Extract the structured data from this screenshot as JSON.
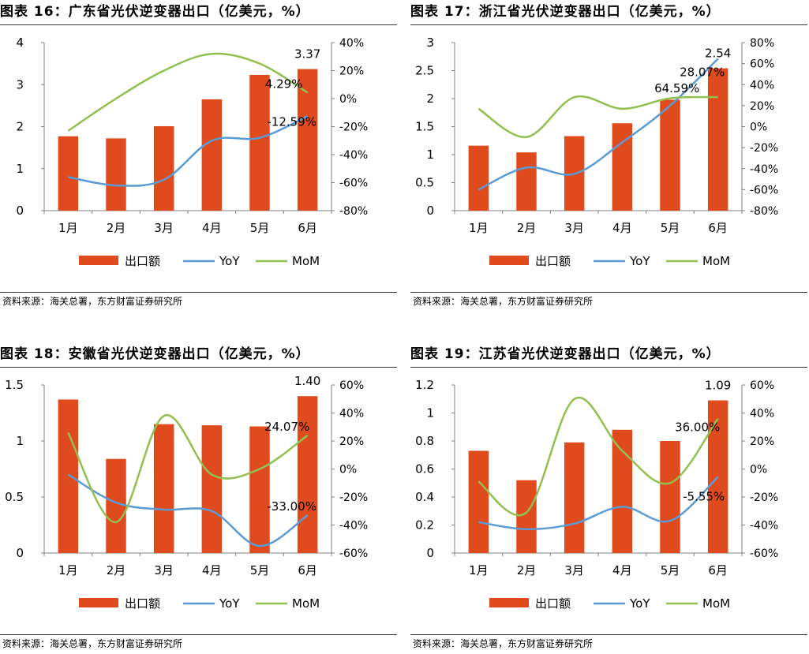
{
  "legend": {
    "bar": "出口额",
    "yoy": "YoY",
    "mom": "MoM"
  },
  "colors": {
    "bar": "#E04B1D",
    "yoy": "#5B9BD5",
    "mom": "#92C050",
    "axis": "#808080"
  },
  "panels": [
    {
      "title": "图表 16：广东省光伏逆变器出口（亿美元，%）",
      "source": "资料来源：海关总署，东方财富证券研究所",
      "chart_data": {
        "type": "bar",
        "categories": [
          "1月",
          "2月",
          "3月",
          "4月",
          "5月",
          "6月"
        ],
        "series": [
          {
            "name": "出口额",
            "type": "bar",
            "axis": "left",
            "values": [
              1.77,
              1.72,
              2.01,
              2.65,
              3.23,
              3.37
            ]
          },
          {
            "name": "YoY",
            "type": "line",
            "axis": "right",
            "values": [
              -56,
              -62,
              -58,
              -30,
              -28,
              -12.59
            ]
          },
          {
            "name": "MoM",
            "type": "line",
            "axis": "right",
            "values": [
              -23,
              0,
              20,
              32,
              25,
              4.29
            ]
          }
        ],
        "ylim_left": [
          0,
          4
        ],
        "yticks_left": [
          "0",
          "1",
          "2",
          "3",
          "4"
        ],
        "ylim_right": [
          -80,
          40
        ],
        "yticks_right": [
          "-80%",
          "-60%",
          "-40%",
          "-20%",
          "0%",
          "20%",
          "40%"
        ],
        "data_labels": [
          "3.37",
          "4.29%",
          "-12.59%"
        ],
        "legend_position": "bottom"
      }
    },
    {
      "title": "图表 17：浙江省光伏逆变器出口（亿美元，%）",
      "source": "资料来源：海关总署，东方财富证券研究所",
      "chart_data": {
        "type": "bar",
        "categories": [
          "1月",
          "2月",
          "3月",
          "4月",
          "5月",
          "6月"
        ],
        "series": [
          {
            "name": "出口额",
            "type": "bar",
            "axis": "left",
            "values": [
              1.16,
              1.04,
              1.33,
              1.56,
              1.98,
              2.54
            ]
          },
          {
            "name": "YoY",
            "type": "line",
            "axis": "right",
            "values": [
              -60,
              -39,
              -45,
              -15,
              20,
              64.59
            ]
          },
          {
            "name": "MoM",
            "type": "line",
            "axis": "right",
            "values": [
              17,
              -10,
              28,
              17,
              27,
              28.07
            ]
          }
        ],
        "ylim_left": [
          0,
          3
        ],
        "yticks_left": [
          "0",
          "0.5",
          "1",
          "1.5",
          "2",
          "2.5",
          "3"
        ],
        "ylim_right": [
          -80,
          80
        ],
        "yticks_right": [
          "-80%",
          "-60%",
          "-40%",
          "-20%",
          "0%",
          "20%",
          "40%",
          "60%",
          "80%"
        ],
        "data_labels": [
          "2.54",
          "64.59%",
          "28.07%"
        ],
        "legend_position": "bottom"
      }
    },
    {
      "title": "图表 18：安徽省光伏逆变器出口（亿美元，%）",
      "source": "资料来源：海关总署，东方财富证券研究所",
      "chart_data": {
        "type": "bar",
        "categories": [
          "1月",
          "2月",
          "3月",
          "4月",
          "5月",
          "6月"
        ],
        "series": [
          {
            "name": "出口额",
            "type": "bar",
            "axis": "left",
            "values": [
              1.37,
              0.84,
              1.15,
              1.14,
              1.13,
              1.4
            ]
          },
          {
            "name": "YoY",
            "type": "line",
            "axis": "right",
            "values": [
              -4,
              -24,
              -29,
              -30,
              -55,
              -33.0
            ]
          },
          {
            "name": "MoM",
            "type": "line",
            "axis": "right",
            "values": [
              26,
              -38,
              38,
              -4,
              0,
              24.07
            ]
          }
        ],
        "ylim_left": [
          0,
          1.5
        ],
        "yticks_left": [
          "0",
          "0.5",
          "1",
          "1.5"
        ],
        "ylim_right": [
          -60,
          60
        ],
        "yticks_right": [
          "-60%",
          "-40%",
          "-20%",
          "0%",
          "20%",
          "40%",
          "60%"
        ],
        "data_labels": [
          "1.40",
          "24.07%",
          "-33.00%"
        ],
        "legend_position": "bottom"
      }
    },
    {
      "title": "图表 19：江苏省光伏逆变器出口（亿美元，%）",
      "source": "资料来源：海关总署，东方财富证券研究所",
      "chart_data": {
        "type": "bar",
        "categories": [
          "1月",
          "2月",
          "3月",
          "4月",
          "5月",
          "6月"
        ],
        "series": [
          {
            "name": "出口额",
            "type": "bar",
            "axis": "left",
            "values": [
              0.73,
              0.52,
              0.79,
              0.88,
              0.8,
              1.09
            ]
          },
          {
            "name": "YoY",
            "type": "line",
            "axis": "right",
            "values": [
              -38,
              -43,
              -39,
              -27,
              -37,
              -5.55
            ]
          },
          {
            "name": "MoM",
            "type": "line",
            "axis": "right",
            "values": [
              -9,
              -31,
              50,
              13,
              -10,
              36.0
            ]
          }
        ],
        "ylim_left": [
          0,
          1.2
        ],
        "yticks_left": [
          "0",
          "0.2",
          "0.4",
          "0.6",
          "0.8",
          "1",
          "1.2"
        ],
        "ylim_right": [
          -60,
          60
        ],
        "yticks_right": [
          "-60%",
          "-40%",
          "-20%",
          "0%",
          "20%",
          "40%",
          "60%"
        ],
        "data_labels": [
          "1.09",
          "36.00%",
          "-5.55%"
        ],
        "legend_position": "bottom"
      }
    }
  ]
}
